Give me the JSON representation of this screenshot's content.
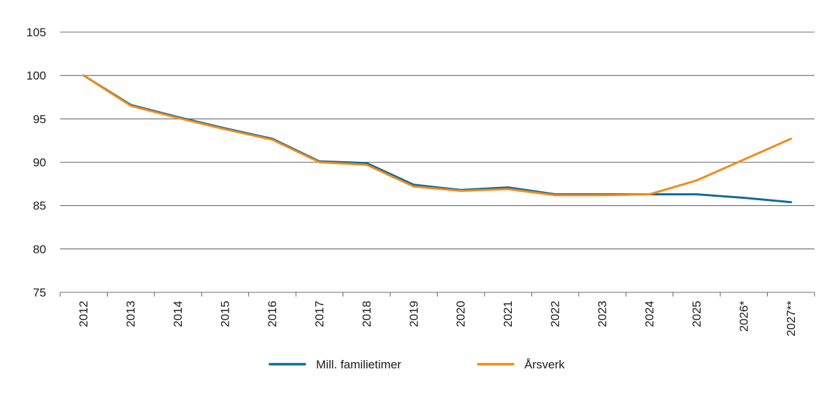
{
  "chart_data": {
    "type": "line",
    "title": "",
    "xlabel": "",
    "ylabel": "",
    "x": [
      "2012",
      "2013",
      "2014",
      "2015",
      "2016",
      "2017",
      "2018",
      "2019",
      "2020",
      "2021",
      "2022",
      "2023",
      "2024",
      "2025",
      "2026*",
      "2027**"
    ],
    "ylim": [
      75,
      105
    ],
    "yticks": [
      75,
      80,
      85,
      90,
      95,
      100,
      105
    ],
    "grid": "horizontal",
    "legend_position": "bottom",
    "series": [
      {
        "name": "Mill. familietimer",
        "color": "#0f6a9c",
        "values": [
          100,
          96.6,
          95.2,
          93.9,
          92.7,
          90.1,
          89.9,
          87.4,
          86.8,
          87.1,
          86.3,
          86.3,
          86.3,
          86.3,
          85.9,
          85.4
        ]
      },
      {
        "name": "Årsverk",
        "color": "#f28a1b",
        "values": [
          100,
          96.5,
          95.1,
          93.8,
          92.6,
          90.0,
          89.7,
          87.2,
          86.7,
          86.9,
          86.2,
          86.2,
          86.3,
          87.9,
          90.3,
          92.7
        ]
      }
    ]
  }
}
